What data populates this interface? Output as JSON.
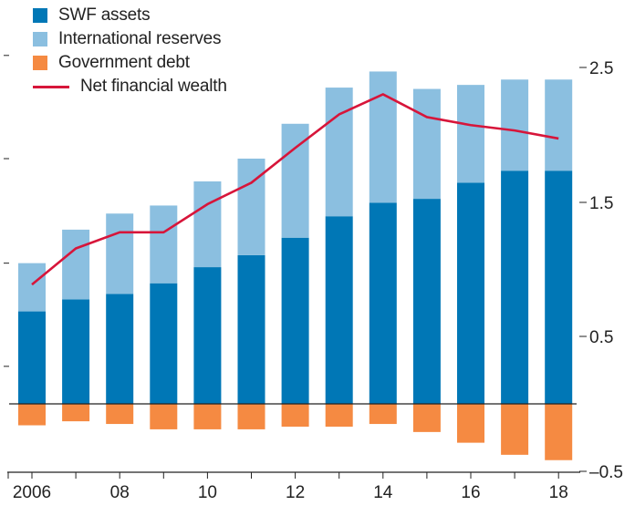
{
  "chart_data": {
    "type": "bar",
    "x": [
      2006,
      2007,
      2008,
      2009,
      2010,
      2011,
      2012,
      2013,
      2014,
      2015,
      2016,
      2017,
      2018
    ],
    "x_tick_labels": [
      "2006",
      "",
      "08",
      "",
      "10",
      "",
      "12",
      "",
      "14",
      "",
      "16",
      "",
      "18"
    ],
    "series": [
      {
        "name": "SWF assets",
        "kind": "bar",
        "color": "#0077b6",
        "values": [
          0.69,
          0.78,
          0.82,
          0.9,
          1.02,
          1.11,
          1.24,
          1.4,
          1.5,
          1.53,
          1.65,
          1.74,
          1.74
        ]
      },
      {
        "name": "International reserves",
        "kind": "bar",
        "color": "#8bbfe0",
        "values": [
          0.36,
          0.52,
          0.6,
          0.58,
          0.64,
          0.72,
          0.85,
          0.96,
          0.98,
          0.82,
          0.73,
          0.68,
          0.68
        ]
      },
      {
        "name": "Government debt",
        "kind": "bar",
        "color": "#f58a42",
        "values": [
          -0.16,
          -0.13,
          -0.15,
          -0.19,
          -0.19,
          -0.19,
          -0.17,
          -0.17,
          -0.15,
          -0.21,
          -0.29,
          -0.38,
          -0.42
        ]
      },
      {
        "name": "Net financial wealth",
        "kind": "line",
        "color": "#d7153a",
        "values": [
          0.89,
          1.16,
          1.28,
          1.28,
          1.49,
          1.65,
          1.91,
          2.16,
          2.31,
          2.14,
          2.08,
          2.04,
          1.98
        ]
      }
    ],
    "right_axis": {
      "ticks": [
        2.5,
        1.5,
        0.5,
        -0.5
      ],
      "tick_labels": [
        "2.5",
        "1.5",
        "0.5",
        "–0.5"
      ]
    },
    "ylim": [
      -0.5,
      2.5
    ],
    "title": "",
    "xlabel": "",
    "ylabel": "",
    "legend": "top-left",
    "grid": false
  }
}
